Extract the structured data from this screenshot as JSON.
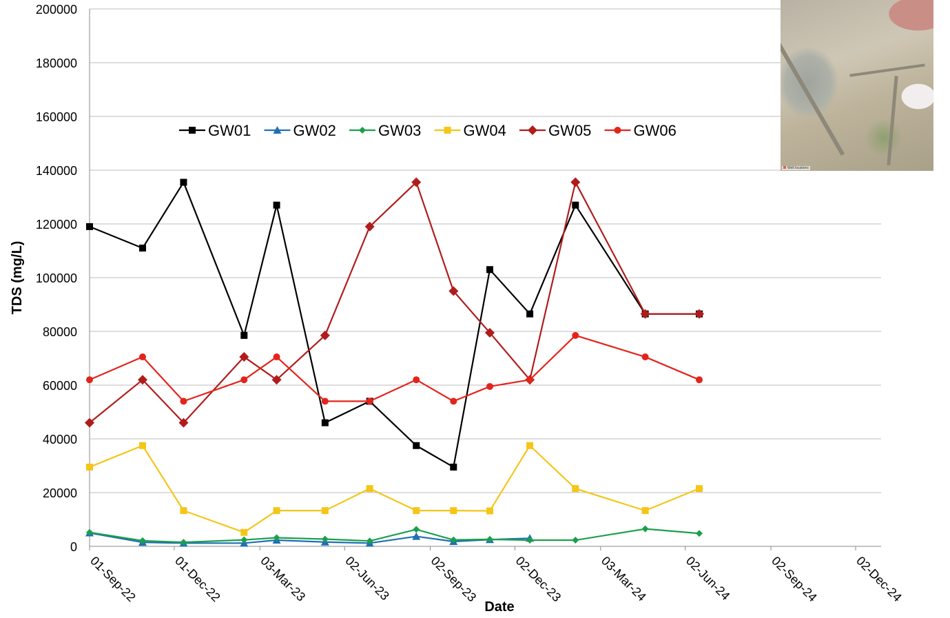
{
  "chart_data": {
    "type": "line",
    "title": "",
    "xlabel": "Date",
    "ylabel": "TDS (mg/L)",
    "ylim": [
      0,
      200000
    ],
    "yticks": [
      0,
      20000,
      40000,
      60000,
      80000,
      100000,
      120000,
      140000,
      160000,
      180000,
      200000
    ],
    "xlim": [
      "2022-09-01",
      "2024-12-02"
    ],
    "xticks": [
      "01-Sep-22",
      "01-Dec-22",
      "03-Mar-23",
      "02-Jun-23",
      "02-Sep-23",
      "02-Dec-23",
      "03-Mar-24",
      "02-Jun-24",
      "02-Sep-24",
      "02-Dec-24"
    ],
    "xtick_dates": [
      "2022-09-01",
      "2022-12-01",
      "2023-03-03",
      "2023-06-02",
      "2023-09-02",
      "2023-12-02",
      "2024-03-03",
      "2024-06-02",
      "2024-09-02",
      "2024-12-02"
    ],
    "grid": "horizontal",
    "legend_position": "upper-left",
    "series": [
      {
        "name": "GW01",
        "color": "#000000",
        "marker": "square",
        "points": [
          [
            "2022-09-01",
            119000
          ],
          [
            "2022-10-28",
            111000
          ],
          [
            "2022-12-11",
            135500
          ],
          [
            "2023-02-14",
            78500
          ],
          [
            "2023-03-21",
            127000
          ],
          [
            "2023-05-12",
            46000
          ],
          [
            "2023-06-29",
            54000
          ],
          [
            "2023-08-18",
            37500
          ],
          [
            "2023-09-27",
            29500
          ],
          [
            "2023-11-05",
            103000
          ],
          [
            "2023-12-18",
            86500
          ],
          [
            "2024-02-05",
            127000
          ],
          [
            "2024-04-20",
            86500
          ],
          [
            "2024-06-17",
            86500
          ]
        ]
      },
      {
        "name": "GW02",
        "color": "#1f6fb5",
        "marker": "triangle",
        "points": [
          [
            "2022-09-01",
            5000
          ],
          [
            "2022-10-28",
            1500
          ],
          [
            "2022-12-11",
            1200
          ],
          [
            "2023-02-14",
            1200
          ],
          [
            "2023-03-21",
            2300
          ],
          [
            "2023-05-12",
            1600
          ],
          [
            "2023-06-29",
            1200
          ],
          [
            "2023-08-18",
            3700
          ],
          [
            "2023-09-27",
            1800
          ],
          [
            "2023-11-05",
            2500
          ],
          [
            "2023-12-18",
            3000
          ]
        ]
      },
      {
        "name": "GW03",
        "color": "#1aa04a",
        "marker": "diamond-small",
        "points": [
          [
            "2022-09-01",
            5200
          ],
          [
            "2022-10-28",
            2100
          ],
          [
            "2022-12-11",
            1500
          ],
          [
            "2023-02-14",
            2400
          ],
          [
            "2023-03-21",
            3200
          ],
          [
            "2023-05-12",
            2700
          ],
          [
            "2023-06-29",
            2000
          ],
          [
            "2023-08-18",
            6300
          ],
          [
            "2023-09-27",
            2400
          ],
          [
            "2023-11-05",
            2600
          ],
          [
            "2023-12-18",
            2300
          ],
          [
            "2024-02-05",
            2300
          ],
          [
            "2024-04-20",
            6500
          ],
          [
            "2024-06-17",
            4800
          ]
        ]
      },
      {
        "name": "GW04",
        "color": "#f5c518",
        "marker": "square",
        "points": [
          [
            "2022-09-01",
            29500
          ],
          [
            "2022-10-28",
            37500
          ],
          [
            "2022-12-11",
            13300
          ],
          [
            "2023-02-14",
            5200
          ],
          [
            "2023-03-21",
            13300
          ],
          [
            "2023-05-12",
            13300
          ],
          [
            "2023-06-29",
            21500
          ],
          [
            "2023-08-18",
            13300
          ],
          [
            "2023-09-27",
            13300
          ],
          [
            "2023-11-05",
            13200
          ],
          [
            "2023-12-18",
            37500
          ],
          [
            "2024-02-05",
            21500
          ],
          [
            "2024-04-20",
            13300
          ],
          [
            "2024-06-17",
            21500
          ]
        ]
      },
      {
        "name": "GW05",
        "color": "#b01c1c",
        "marker": "diamond",
        "points": [
          [
            "2022-09-01",
            46000
          ],
          [
            "2022-10-28",
            62000
          ],
          [
            "2022-12-11",
            46000
          ],
          [
            "2023-02-14",
            70500
          ],
          [
            "2023-03-21",
            62000
          ],
          [
            "2023-05-12",
            78500
          ],
          [
            "2023-06-29",
            119000
          ],
          [
            "2023-08-18",
            135500
          ],
          [
            "2023-09-27",
            95000
          ],
          [
            "2023-11-05",
            79500
          ],
          [
            "2023-12-18",
            62000
          ],
          [
            "2024-02-05",
            135500
          ],
          [
            "2024-04-20",
            86500
          ],
          [
            "2024-06-17",
            86500
          ]
        ]
      },
      {
        "name": "GW06",
        "color": "#e3241c",
        "marker": "circle",
        "points": [
          [
            "2022-09-01",
            62000
          ],
          [
            "2022-10-28",
            70500
          ],
          [
            "2022-12-11",
            54000
          ],
          [
            "2023-02-14",
            62000
          ],
          [
            "2023-03-21",
            70500
          ],
          [
            "2023-05-12",
            54000
          ],
          [
            "2023-06-29",
            54000
          ],
          [
            "2023-08-18",
            62000
          ],
          [
            "2023-09-27",
            54000
          ],
          [
            "2023-11-05",
            59500
          ],
          [
            "2023-12-18",
            62000
          ],
          [
            "2024-02-05",
            78500
          ],
          [
            "2024-04-20",
            70500
          ],
          [
            "2024-06-17",
            62000
          ]
        ]
      }
    ]
  },
  "inset": {
    "legend_text": "Well locations"
  }
}
